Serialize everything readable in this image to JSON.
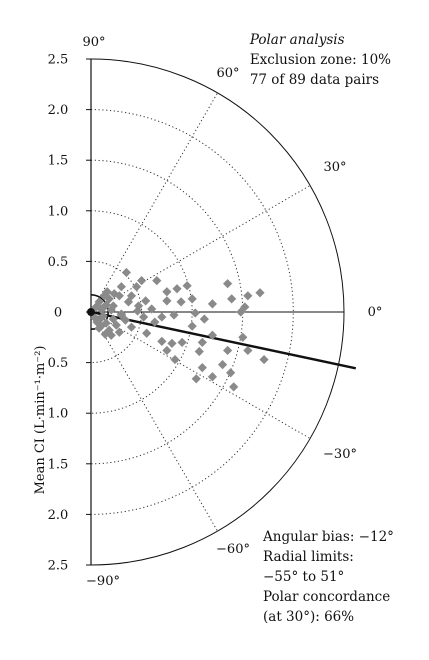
{
  "chart_data": {
    "type": "polar-scatter",
    "title": "Polar analysis",
    "subtitle_lines": [
      "Exclusion zone: 10%",
      "77 of 89 data pairs"
    ],
    "ylabel": "Mean CI (L·min⁻¹·m⁻²)",
    "radial_max": 2.5,
    "radial_ticks": [
      2.5,
      2.0,
      1.5,
      1.0,
      0.5,
      0,
      0.5,
      1.0,
      1.5,
      2.0,
      2.5
    ],
    "radial_tick_values": [
      2.5,
      2.0,
      1.5,
      1.0,
      0.5,
      0,
      -0.5,
      -1.0,
      -1.5,
      -2.0,
      -2.5
    ],
    "angle_labels": [
      {
        "angle": 90,
        "label": "90°"
      },
      {
        "angle": 60,
        "label": "60°"
      },
      {
        "angle": 30,
        "label": "30°"
      },
      {
        "angle": 0,
        "label": "0°"
      },
      {
        "angle": -30,
        "label": "−30°"
      },
      {
        "angle": -60,
        "label": "−60°"
      },
      {
        "angle": -90,
        "label": "−90°"
      }
    ],
    "exclusion_radius": 0.17,
    "angular_bias_deg": -12,
    "radial_limits_deg": [
      -55,
      51
    ],
    "annotations": [
      "Angular bias: −12°",
      "Radial limits:",
      "−55° to 51°",
      "Polar concordance",
      "(at 30°): 66%"
    ],
    "points": [
      [
        1.67,
        0.19
      ],
      [
        1.55,
        0.16
      ],
      [
        1.52,
        0.05
      ],
      [
        1.48,
        0.0
      ],
      [
        1.35,
        0.28
      ],
      [
        1.39,
        0.13
      ],
      [
        1.2,
        0.08
      ],
      [
        1.0,
        0.13
      ],
      [
        0.89,
        0.1
      ],
      [
        1.03,
        -0.01
      ],
      [
        0.75,
        0.2
      ],
      [
        0.54,
        0.11
      ],
      [
        0.28,
        0.16
      ],
      [
        0.37,
        0.1
      ],
      [
        0.52,
        -0.05
      ],
      [
        0.63,
        -0.1
      ],
      [
        0.46,
        0.01
      ],
      [
        0.3,
        -0.03
      ],
      [
        0.4,
        -0.15
      ],
      [
        0.55,
        -0.21
      ],
      [
        0.7,
        -0.29
      ],
      [
        0.75,
        -0.38
      ],
      [
        0.8,
        -0.31
      ],
      [
        0.9,
        -0.3
      ],
      [
        0.83,
        -0.47
      ],
      [
        1.07,
        -0.39
      ],
      [
        1.1,
        -0.3
      ],
      [
        1.1,
        -0.55
      ],
      [
        1.38,
        -0.6
      ],
      [
        1.41,
        -0.74
      ],
      [
        1.71,
        -0.47
      ],
      [
        1.55,
        -0.38
      ],
      [
        1.04,
        -0.66
      ],
      [
        1.3,
        -0.52
      ],
      [
        1.2,
        -0.64
      ],
      [
        1.35,
        -0.38
      ],
      [
        1.5,
        -0.25
      ],
      [
        1.2,
        -0.23
      ],
      [
        1.12,
        -0.07
      ],
      [
        1.0,
        -0.14
      ],
      [
        0.82,
        -0.03
      ],
      [
        0.7,
        -0.05
      ],
      [
        0.6,
        0.03
      ],
      [
        0.47,
        0.06
      ],
      [
        0.4,
        0.16
      ],
      [
        0.3,
        0.25
      ],
      [
        0.35,
        0.39
      ],
      [
        0.5,
        0.31
      ],
      [
        0.65,
        0.31
      ],
      [
        0.85,
        0.23
      ],
      [
        0.95,
        0.26
      ],
      [
        0.75,
        0.11
      ],
      [
        0.45,
        0.25
      ],
      [
        0.05,
        0.05
      ],
      [
        0.08,
        0.1
      ],
      [
        0.1,
        0.03
      ],
      [
        0.13,
        0.16
      ],
      [
        0.15,
        0.07
      ],
      [
        0.18,
        0.13
      ],
      [
        0.23,
        0.18
      ],
      [
        0.22,
        0.06
      ],
      [
        0.16,
        0.2
      ],
      [
        0.12,
        0.04
      ],
      [
        0.2,
        0.02
      ],
      [
        0.04,
        -0.06
      ],
      [
        0.08,
        -0.08
      ],
      [
        0.1,
        -0.14
      ],
      [
        0.12,
        -0.04
      ],
      [
        0.15,
        -0.11
      ],
      [
        0.18,
        -0.18
      ],
      [
        0.22,
        -0.07
      ],
      [
        0.25,
        -0.13
      ],
      [
        0.14,
        -0.22
      ],
      [
        0.2,
        -0.23
      ],
      [
        0.28,
        -0.2
      ],
      [
        0.34,
        -0.08
      ],
      [
        0.08,
        -0.16
      ],
      [
        0.06,
        -0.1
      ],
      [
        0.3,
        -0.02
      ]
    ]
  }
}
